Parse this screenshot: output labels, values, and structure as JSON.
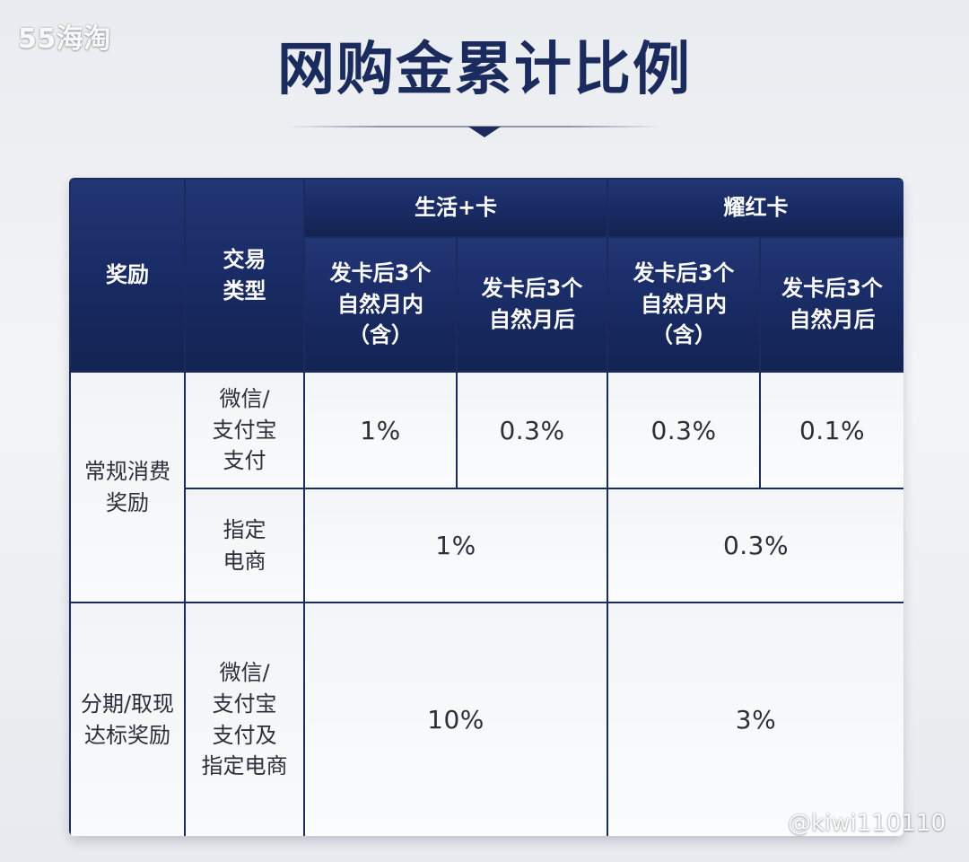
{
  "watermark_top": "55海淘",
  "title": "网购金累计比例",
  "table": {
    "header": {
      "reward": "奖励",
      "transaction_type": "交易\n类型",
      "card_1": "生活+卡",
      "card_2": "耀红卡",
      "sub_1": "发卡后3个\n自然月内\n（含）",
      "sub_2": "发卡后3个\n自然月后",
      "sub_3": "发卡后3个\n自然月内\n（含）",
      "sub_4": "发卡后3个\n自然月后"
    },
    "rows": {
      "regular_reward": "常规消费\n奖励",
      "installment_reward": "分期/取现\n达标奖励",
      "wechat_alipay": "微信/\n支付宝\n支付",
      "designated_ecommerce": "指定\n电商",
      "wechat_alipay_ecommerce": "微信/\n支付宝\n支付及\n指定电商"
    },
    "values": {
      "r1_c1": "1%",
      "r1_c2": "0.3%",
      "r1_c3": "0.3%",
      "r1_c4": "0.1%",
      "r2_card1": "1%",
      "r2_card2": "0.3%",
      "r3_card1": "10%",
      "r3_card2": "3%"
    }
  },
  "watermark_bottom": "@kiwi110110",
  "colors": {
    "header_navy": "#1a2c66",
    "title_navy": "#1b2b5d",
    "cell_bg": "#f7f8fa",
    "page_bg": "#eceef1"
  }
}
